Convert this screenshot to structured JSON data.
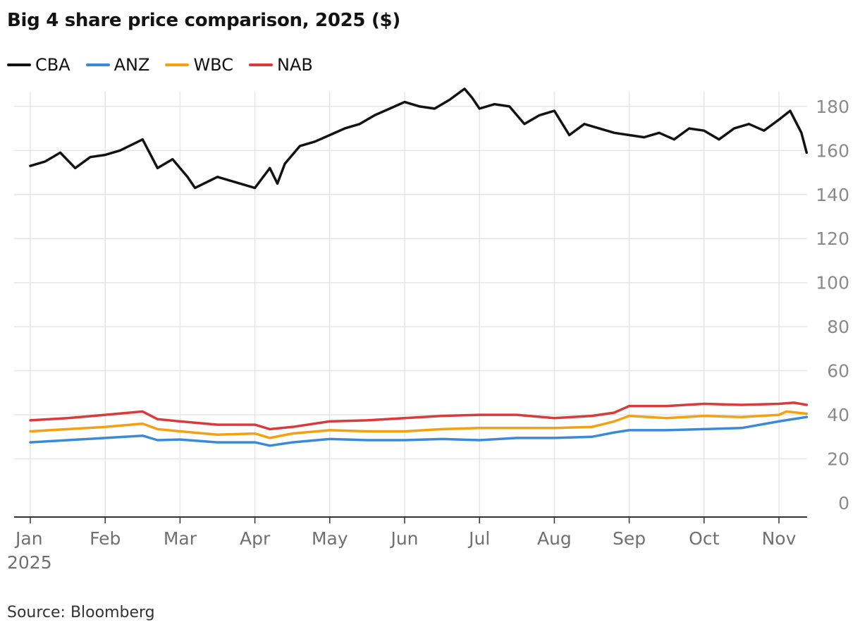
{
  "chart_data": {
    "type": "line",
    "title": "Big 4 share price comparison, 2025 ($)",
    "source": "Source: Bloomberg",
    "x_labels": [
      "Jan",
      "Feb",
      "Mar",
      "Apr",
      "May",
      "Jun",
      "Jul",
      "Aug",
      "Sep",
      "Oct",
      "Nov"
    ],
    "year_label": "2025",
    "y_ticks": [
      0,
      20,
      40,
      60,
      80,
      100,
      120,
      140,
      160,
      180
    ],
    "ylim": [
      0,
      185
    ],
    "grid": "vertical and horizontal",
    "legend_position": "top-left",
    "x_unit": "month index (0 = Jan 1, 10 = Nov 1)",
    "series": [
      {
        "name": "CBA",
        "color": "#121212",
        "x": [
          0,
          0.2,
          0.4,
          0.6,
          0.8,
          1.0,
          1.2,
          1.5,
          1.7,
          1.9,
          2.1,
          2.2,
          2.5,
          2.8,
          3.0,
          3.2,
          3.3,
          3.4,
          3.6,
          3.8,
          4.0,
          4.2,
          4.4,
          4.6,
          4.8,
          5.0,
          5.2,
          5.4,
          5.6,
          5.8,
          5.9,
          6.0,
          6.2,
          6.4,
          6.6,
          6.8,
          7.0,
          7.2,
          7.4,
          7.6,
          7.8,
          8.0,
          8.2,
          8.4,
          8.6,
          8.8,
          9.0,
          9.2,
          9.4,
          9.6,
          9.8,
          10.0,
          10.15,
          10.3,
          10.37
        ],
        "y": [
          153,
          155,
          159,
          152,
          157,
          158,
          160,
          165,
          152,
          156,
          148,
          143,
          148,
          145,
          143,
          152,
          145,
          154,
          162,
          164,
          167,
          170,
          172,
          176,
          179,
          182,
          180,
          179,
          183,
          188,
          184,
          179,
          181,
          180,
          172,
          176,
          178,
          167,
          172,
          170,
          168,
          167,
          166,
          168,
          165,
          170,
          169,
          165,
          170,
          172,
          169,
          174,
          178,
          168,
          159
        ]
      },
      {
        "name": "ANZ",
        "color": "#3b8ad8",
        "x": [
          0,
          0.5,
          1.0,
          1.5,
          1.7,
          2.0,
          2.5,
          3.0,
          3.2,
          3.5,
          4.0,
          4.5,
          5.0,
          5.5,
          6.0,
          6.5,
          7.0,
          7.5,
          7.8,
          8.0,
          8.5,
          9.0,
          9.5,
          10.0,
          10.37
        ],
        "y": [
          27.5,
          28.5,
          29.5,
          30.5,
          28.5,
          28.8,
          27.5,
          27.5,
          26,
          27.5,
          29,
          28.5,
          28.5,
          29,
          28.5,
          29.5,
          29.5,
          30,
          32,
          33,
          33,
          33.5,
          34,
          37,
          39
        ]
      },
      {
        "name": "WBC",
        "color": "#f5a00f",
        "x": [
          0,
          0.5,
          1.0,
          1.5,
          1.7,
          2.0,
          2.5,
          3.0,
          3.2,
          3.5,
          4.0,
          4.5,
          5.0,
          5.5,
          6.0,
          6.5,
          7.0,
          7.5,
          7.8,
          8.0,
          8.5,
          9.0,
          9.5,
          10.0,
          10.1,
          10.37
        ],
        "y": [
          32.5,
          33.5,
          34.5,
          36,
          33.5,
          32.5,
          31,
          31.5,
          29.5,
          31.5,
          33,
          32.5,
          32.5,
          33.5,
          34,
          34,
          34,
          34.5,
          37,
          39.5,
          38.5,
          39.5,
          39,
          40,
          41.5,
          40.5
        ]
      },
      {
        "name": "NAB",
        "color": "#d93b3b",
        "x": [
          0,
          0.5,
          1.0,
          1.5,
          1.7,
          2.0,
          2.5,
          3.0,
          3.2,
          3.5,
          4.0,
          4.5,
          5.0,
          5.5,
          6.0,
          6.5,
          7.0,
          7.5,
          7.8,
          8.0,
          8.5,
          9.0,
          9.5,
          10.0,
          10.2,
          10.37
        ],
        "y": [
          37.5,
          38.5,
          40,
          41.5,
          38,
          37,
          35.5,
          35.5,
          33.5,
          34.5,
          37,
          37.5,
          38.5,
          39.5,
          40,
          40,
          38.5,
          39.5,
          41,
          44,
          44,
          45,
          44.5,
          45,
          45.5,
          44.5
        ]
      }
    ]
  }
}
